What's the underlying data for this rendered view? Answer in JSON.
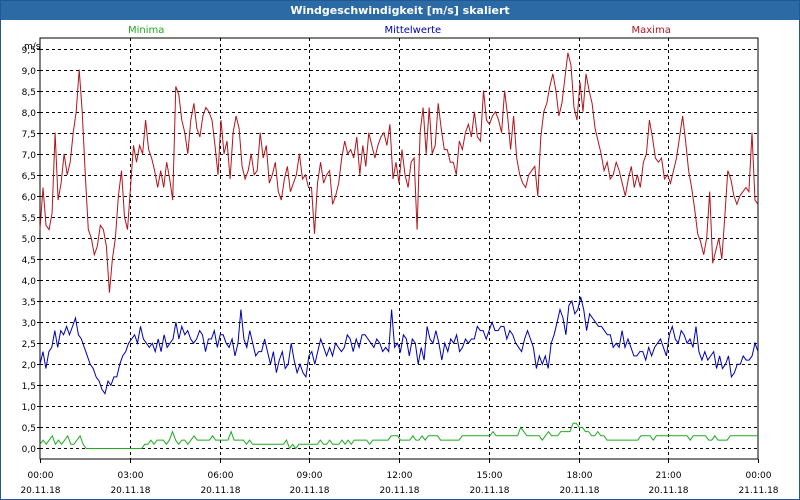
{
  "window": {
    "title": "Windgeschwindigkeit [m/s] skaliert"
  },
  "chart_data": {
    "type": "line",
    "title": "Windgeschwindigkeit [m/s] skaliert",
    "ylabel": "m/s",
    "ylim": [
      -0.25,
      9.75
    ],
    "y_ticks": [
      0.0,
      0.5,
      1.0,
      1.5,
      2.0,
      2.5,
      3.0,
      3.5,
      4.0,
      4.5,
      5.0,
      5.5,
      6.0,
      6.5,
      7.0,
      7.5,
      8.0,
      8.5,
      9.0,
      9.5
    ],
    "y_tick_labels": [
      "0,0",
      "0,5",
      "1,0",
      "1,5",
      "2,0",
      "2,5",
      "3,0",
      "3,5",
      "4,0",
      "4,5",
      "5,0",
      "5,5",
      "6,0",
      "6,5",
      "7,0",
      "7,5",
      "8,0",
      "8,5",
      "9,0",
      "9,5"
    ],
    "x_ticks": [
      {
        "time": "00:00",
        "date": "20.11.18"
      },
      {
        "time": "03:00",
        "date": "20.11.18"
      },
      {
        "time": "06:00",
        "date": "20.11.18"
      },
      {
        "time": "09:00",
        "date": "20.11.18"
      },
      {
        "time": "12:00",
        "date": "20.11.18"
      },
      {
        "time": "15:00",
        "date": "20.11.18"
      },
      {
        "time": "18:00",
        "date": "20.11.18"
      },
      {
        "time": "21:00",
        "date": "20.11.18"
      },
      {
        "time": "00:00",
        "date": "21.11.18"
      }
    ],
    "grid": true,
    "legend_position": "top",
    "series": [
      {
        "name": "Minima",
        "color": "#22aa22",
        "values": [
          0.1,
          0.2,
          0.1,
          0.2,
          0.3,
          0.1,
          0.2,
          0.1,
          0.2,
          0.3,
          0.1,
          0.1,
          0.2,
          0.3,
          0.1,
          0.0,
          0.0,
          0.0,
          0.0,
          0.0,
          0.0,
          0.0,
          0.0,
          0.0,
          0.0,
          0.0,
          0.0,
          0.0,
          0.0,
          0.0,
          0.0,
          0.0,
          0.0,
          0.0,
          0.1,
          0.1,
          0.2,
          0.1,
          0.2,
          0.2,
          0.2,
          0.1,
          0.2,
          0.4,
          0.2,
          0.1,
          0.2,
          0.2,
          0.1,
          0.2,
          0.3,
          0.2,
          0.2,
          0.2,
          0.2,
          0.2,
          0.3,
          0.2,
          0.2,
          0.2,
          0.2,
          0.2,
          0.4,
          0.2,
          0.2,
          0.2,
          0.2,
          0.1,
          0.2,
          0.1,
          0.1,
          0.1,
          0.1,
          0.1,
          0.1,
          0.1,
          0.1,
          0.1,
          0.1,
          0.1,
          0.2,
          0.0,
          0.1,
          0.0,
          0.1,
          0.1,
          0.1,
          0.1,
          0.1,
          0.1,
          0.1,
          0.2,
          0.1,
          0.1,
          0.2,
          0.1,
          0.1,
          0.1,
          0.2,
          0.1,
          0.2,
          0.1,
          0.2,
          0.2,
          0.2,
          0.2,
          0.2,
          0.1,
          0.2,
          0.2,
          0.2,
          0.2,
          0.2,
          0.2,
          0.3,
          0.3,
          0.3,
          0.2,
          0.2,
          0.2,
          0.2,
          0.3,
          0.2,
          0.2,
          0.3,
          0.2,
          0.3,
          0.3,
          0.3,
          0.3,
          0.2,
          0.2,
          0.2,
          0.2,
          0.2,
          0.2,
          0.2,
          0.3,
          0.3,
          0.3,
          0.3,
          0.3,
          0.3,
          0.3,
          0.3,
          0.3,
          0.3,
          0.4,
          0.3,
          0.3,
          0.3,
          0.3,
          0.3,
          0.3,
          0.3,
          0.3,
          0.5,
          0.4,
          0.3,
          0.3,
          0.3,
          0.3,
          0.3,
          0.2,
          0.3,
          0.4,
          0.3,
          0.3,
          0.3,
          0.4,
          0.4,
          0.4,
          0.4,
          0.6,
          0.6,
          0.5,
          0.5,
          0.4,
          0.4,
          0.3,
          0.3,
          0.4,
          0.3,
          0.3,
          0.2,
          0.2,
          0.2,
          0.2,
          0.2,
          0.2,
          0.2,
          0.2,
          0.2,
          0.2,
          0.2,
          0.3,
          0.3,
          0.3,
          0.3,
          0.2,
          0.3,
          0.3,
          0.3,
          0.3,
          0.3,
          0.3,
          0.3,
          0.3,
          0.3,
          0.3,
          0.3,
          0.2,
          0.3,
          0.3,
          0.3,
          0.3,
          0.3,
          0.2,
          0.2,
          0.3,
          0.2,
          0.2,
          0.2,
          0.2,
          0.3,
          0.3,
          0.3,
          0.3,
          0.3,
          0.3,
          0.3,
          0.3,
          0.3,
          0.3
        ]
      },
      {
        "name": "Mittelwerte",
        "color": "#0000b4",
        "values": [
          2.0,
          2.3,
          1.9,
          2.3,
          2.4,
          2.8,
          2.4,
          2.8,
          2.7,
          2.9,
          2.7,
          2.9,
          3.1,
          2.7,
          2.6,
          2.4,
          2.2,
          2.0,
          1.9,
          1.7,
          1.6,
          1.4,
          1.3,
          1.6,
          1.5,
          1.7,
          1.7,
          2.0,
          2.2,
          2.3,
          2.5,
          2.6,
          2.7,
          2.5,
          2.9,
          2.6,
          2.5,
          2.4,
          2.5,
          2.3,
          2.6,
          2.3,
          2.7,
          2.4,
          2.5,
          2.6,
          3.0,
          2.6,
          2.9,
          2.7,
          2.8,
          2.6,
          2.5,
          2.6,
          2.8,
          2.7,
          2.3,
          2.6,
          2.6,
          2.8,
          2.4,
          2.7,
          2.7,
          2.5,
          2.4,
          2.6,
          2.2,
          2.5,
          3.3,
          2.6,
          2.4,
          2.8,
          2.5,
          2.2,
          2.3,
          2.3,
          2.6,
          2.3,
          2.0,
          2.3,
          1.8,
          2.1,
          2.3,
          1.9,
          2.0,
          2.5,
          2.1,
          1.8,
          2.0,
          1.8,
          1.7,
          2.2,
          2.3,
          2.0,
          2.3,
          2.6,
          2.4,
          2.2,
          2.4,
          2.2,
          2.5,
          2.4,
          2.3,
          2.4,
          2.7,
          2.6,
          2.3,
          2.6,
          2.4,
          2.7,
          2.7,
          2.6,
          2.5,
          2.4,
          2.6,
          2.5,
          2.3,
          2.4,
          2.3,
          3.3,
          2.4,
          2.5,
          2.3,
          2.7,
          2.6,
          2.2,
          2.6,
          2.5,
          2.0,
          2.4,
          2.1,
          2.9,
          2.6,
          2.5,
          2.8,
          2.5,
          2.1,
          2.5,
          2.3,
          2.6,
          2.5,
          2.7,
          2.3,
          2.4,
          2.6,
          2.5,
          2.6,
          2.6,
          2.9,
          2.8,
          2.8,
          2.6,
          2.8,
          3.0,
          2.8,
          2.8,
          2.9,
          2.9,
          2.6,
          2.8,
          2.7,
          2.5,
          2.4,
          2.3,
          2.6,
          2.8,
          2.6,
          2.4,
          1.9,
          2.2,
          2.0,
          2.2,
          1.9,
          2.5,
          2.7,
          3.0,
          3.3,
          3.1,
          2.7,
          3.4,
          3.5,
          3.2,
          3.3,
          3.6,
          3.3,
          2.8,
          3.2,
          3.1,
          3.0,
          2.9,
          2.9,
          2.8,
          2.7,
          2.7,
          2.4,
          2.5,
          2.4,
          2.8,
          2.4,
          2.6,
          2.4,
          2.2,
          2.2,
          2.3,
          2.3,
          2.1,
          2.4,
          2.2,
          2.4,
          2.5,
          2.6,
          2.4,
          2.2,
          2.7,
          2.9,
          2.6,
          2.5,
          2.8,
          2.7,
          2.5,
          2.6,
          2.4,
          2.9,
          2.3,
          2.1,
          2.3,
          2.1,
          2.2,
          2.3,
          1.9,
          2.2,
          1.9,
          2.0,
          2.2,
          1.7,
          1.8,
          2.0,
          2.0,
          2.2,
          2.1,
          2.1,
          2.2,
          2.5,
          2.3
        ]
      },
      {
        "name": "Maxima",
        "color": "#b0161e",
        "values": [
          5.2,
          6.2,
          5.3,
          5.2,
          5.6,
          7.5,
          5.9,
          6.3,
          7.0,
          6.5,
          6.8,
          7.5,
          8.0,
          9.0,
          8.0,
          6.5,
          5.2,
          5.0,
          4.6,
          4.8,
          5.3,
          5.2,
          4.8,
          3.7,
          4.5,
          5.0,
          6.0,
          6.6,
          5.5,
          5.2,
          6.2,
          7.2,
          6.8,
          7.2,
          7.0,
          7.8,
          7.1,
          6.9,
          6.6,
          6.2,
          6.6,
          6.2,
          6.8,
          6.4,
          5.9,
          8.6,
          8.4,
          7.8,
          7.5,
          7.0,
          7.8,
          8.2,
          7.6,
          7.4,
          7.9,
          8.1,
          8.0,
          7.8,
          7.2,
          6.5,
          7.8,
          7.0,
          7.3,
          6.4,
          7.5,
          7.9,
          7.6,
          6.7,
          6.4,
          6.6,
          7.0,
          6.5,
          6.6,
          7.5,
          6.9,
          7.2,
          6.3,
          6.5,
          6.8,
          6.1,
          5.9,
          6.4,
          6.7,
          6.1,
          6.3,
          6.5,
          7.0,
          6.4,
          6.5,
          6.2,
          6.2,
          5.1,
          6.3,
          6.8,
          6.3,
          6.5,
          6.6,
          5.8,
          6.0,
          6.3,
          6.9,
          7.3,
          7.0,
          7.1,
          6.9,
          7.4,
          6.5,
          7.2,
          6.7,
          7.5,
          7.2,
          6.9,
          7.2,
          7.4,
          7.5,
          7.2,
          7.7,
          6.4,
          6.8,
          6.3,
          7.1,
          6.5,
          6.2,
          6.8,
          6.9,
          5.2,
          7.5,
          8.1,
          7.0,
          8.1,
          7.0,
          7.2,
          8.2,
          7.6,
          7.1,
          7.1,
          6.8,
          6.8,
          6.5,
          7.3,
          7.1,
          7.5,
          7.7,
          7.4,
          8.0,
          7.4,
          7.3,
          8.5,
          7.8,
          7.7,
          7.9,
          8.0,
          7.8,
          7.5,
          8.5,
          7.9,
          7.1,
          7.9,
          6.9,
          6.5,
          6.3,
          6.2,
          6.5,
          6.6,
          6.7,
          6.0,
          7.4,
          8.0,
          8.2,
          8.6,
          8.9,
          8.5,
          7.9,
          8.2,
          8.8,
          9.4,
          9.1,
          8.1,
          7.8,
          8.7,
          8.0,
          8.9,
          8.5,
          8.2,
          7.6,
          7.3,
          7.0,
          6.6,
          6.8,
          6.4,
          6.5,
          6.8,
          6.6,
          6.3,
          6.0,
          6.4,
          6.7,
          6.2,
          6.5,
          6.2,
          6.8,
          7.0,
          7.8,
          7.4,
          6.9,
          6.8,
          6.9,
          6.4,
          6.5,
          6.3,
          6.6,
          6.9,
          7.4,
          7.9,
          7.3,
          6.6,
          6.2,
          5.7,
          5.1,
          4.9,
          4.6,
          5.0,
          6.1,
          4.4,
          4.7,
          5.0,
          4.5,
          5.5,
          6.6,
          6.4,
          6.0,
          5.8,
          6.0,
          6.1,
          6.2,
          6.1,
          7.5,
          5.9,
          5.8
        ]
      }
    ]
  }
}
